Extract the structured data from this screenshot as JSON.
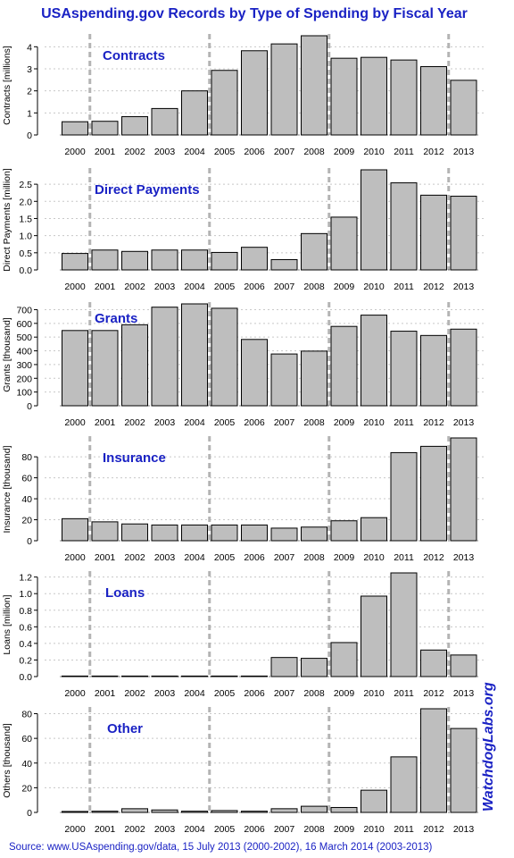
{
  "title": "USAspending.gov Records by Type of Spending by Fiscal Year",
  "source": "Source: www.USAspending.gov/data, 15 July 2013 (2000-2002), 16 March 2014 (2003-2013)",
  "watermark": "WatchdogLabs.org",
  "colors": {
    "title": "#1a22c4",
    "panel_label": "#1a22c4",
    "bar_fill": "#bebebe",
    "bar_stroke": "#000000",
    "grid": "#c8c8c8",
    "divider": "#b4b4b4",
    "watermark": "#1a22c4"
  },
  "chart_data": [
    {
      "type": "bar",
      "label": "Contracts",
      "ylabel": "Contracts [millions]",
      "categories": [
        "2000",
        "2001",
        "2002",
        "2003",
        "2004",
        "2005",
        "2006",
        "2007",
        "2008",
        "2009",
        "2010",
        "2011",
        "2012",
        "2013"
      ],
      "values": [
        0.6,
        0.62,
        0.83,
        1.2,
        2.0,
        2.93,
        3.82,
        4.13,
        4.5,
        3.48,
        3.52,
        3.4,
        3.1,
        2.48
      ],
      "ylim": [
        0,
        4.5
      ],
      "yticks": [
        0,
        1,
        2,
        3,
        4
      ],
      "ytick_labels": [
        "0",
        "1",
        "2",
        "3",
        "4"
      ],
      "grid": true
    },
    {
      "type": "bar",
      "label": "Direct Payments",
      "ylabel": "Direct Payments [million]",
      "categories": [
        "2000",
        "2001",
        "2002",
        "2003",
        "2004",
        "2005",
        "2006",
        "2007",
        "2008",
        "2009",
        "2010",
        "2011",
        "2012",
        "2013"
      ],
      "values": [
        0.48,
        0.58,
        0.54,
        0.58,
        0.58,
        0.51,
        0.66,
        0.3,
        1.06,
        1.54,
        2.92,
        2.54,
        2.18,
        2.15
      ],
      "ylim": [
        0,
        2.92
      ],
      "yticks": [
        0,
        0.5,
        1.0,
        1.5,
        2.0,
        2.5
      ],
      "ytick_labels": [
        "0.0",
        "0.5",
        "1.0",
        "1.5",
        "2.0",
        "2.5"
      ],
      "grid": true
    },
    {
      "type": "bar",
      "label": "Grants",
      "ylabel": "Grants [thousand]",
      "categories": [
        "2000",
        "2001",
        "2002",
        "2003",
        "2004",
        "2005",
        "2006",
        "2007",
        "2008",
        "2009",
        "2010",
        "2011",
        "2012",
        "2013"
      ],
      "values": [
        548,
        548,
        590,
        718,
        742,
        710,
        483,
        377,
        398,
        578,
        660,
        543,
        512,
        558
      ],
      "ylim": [
        0,
        742
      ],
      "yticks": [
        0,
        100,
        200,
        300,
        400,
        500,
        600,
        700
      ],
      "ytick_labels": [
        "0",
        "100",
        "200",
        "300",
        "400",
        "500",
        "600",
        "700"
      ],
      "grid": true
    },
    {
      "type": "bar",
      "label": "Insurance",
      "ylabel": "Insurance [thousand]",
      "categories": [
        "2000",
        "2001",
        "2002",
        "2003",
        "2004",
        "2005",
        "2006",
        "2007",
        "2008",
        "2009",
        "2010",
        "2011",
        "2012",
        "2013"
      ],
      "values": [
        21,
        18,
        16,
        15,
        15,
        15,
        15,
        12,
        13,
        19,
        22,
        84,
        90,
        98
      ],
      "ylim": [
        0,
        98
      ],
      "yticks": [
        0,
        20,
        40,
        60,
        80
      ],
      "ytick_labels": [
        "0",
        "20",
        "40",
        "60",
        "80"
      ],
      "grid": true
    },
    {
      "type": "bar",
      "label": "Loans",
      "ylabel": "Loans [million]",
      "categories": [
        "2000",
        "2001",
        "2002",
        "2003",
        "2004",
        "2005",
        "2006",
        "2007",
        "2008",
        "2009",
        "2010",
        "2011",
        "2012",
        "2013"
      ],
      "values": [
        0.002,
        0.002,
        0.002,
        0.002,
        0.002,
        0.002,
        0.002,
        0.23,
        0.22,
        0.41,
        0.97,
        1.25,
        0.32,
        0.26
      ],
      "ylim": [
        0,
        1.25
      ],
      "yticks": [
        0,
        0.2,
        0.4,
        0.6,
        0.8,
        1.0,
        1.2
      ],
      "ytick_labels": [
        "0.0",
        "0.2",
        "0.4",
        "0.6",
        "0.8",
        "1.0",
        "1.2"
      ],
      "grid": true
    },
    {
      "type": "bar",
      "label": "Other",
      "ylabel": "Others [thousand]",
      "categories": [
        "2000",
        "2001",
        "2002",
        "2003",
        "2004",
        "2005",
        "2006",
        "2007",
        "2008",
        "2009",
        "2010",
        "2011",
        "2012",
        "2013"
      ],
      "values": [
        0.8,
        1,
        3,
        2,
        1,
        1.5,
        1,
        3,
        5,
        4,
        18,
        45,
        84,
        68
      ],
      "ylim": [
        0,
        84
      ],
      "yticks": [
        0,
        20,
        40,
        60,
        80
      ],
      "ytick_labels": [
        "0",
        "20",
        "40",
        "60",
        "80"
      ],
      "grid": true
    }
  ]
}
